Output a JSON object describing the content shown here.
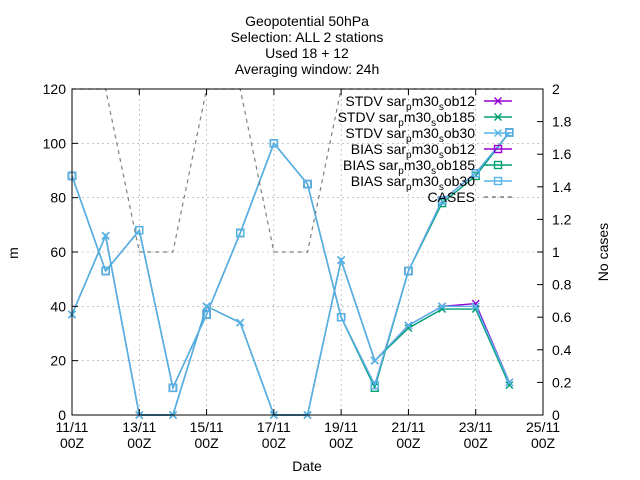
{
  "chart_data": {
    "type": "line",
    "title_lines": [
      "Geopotential 50hPa",
      "Selection: ALL      2 stations",
      "Used 18 + 12",
      "Averaging window: 24h"
    ],
    "xlabel": "Date",
    "ylabel": "m",
    "y2label": "No cases",
    "ylim": [
      0,
      120
    ],
    "y2lim": [
      0,
      2
    ],
    "yticks": [
      "0",
      "20",
      "40",
      "60",
      "80",
      "100",
      "120"
    ],
    "y2ticks": [
      "0",
      "0.2",
      "0.4",
      "0.6",
      "0.8",
      "1",
      "1.2",
      "1.4",
      "1.6",
      "1.8",
      "2"
    ],
    "xlim": [
      0,
      14
    ],
    "xticks": [
      {
        "pos": 0,
        "line1": "11/11",
        "line2": "00Z"
      },
      {
        "pos": 2,
        "line1": "13/11",
        "line2": "00Z"
      },
      {
        "pos": 4,
        "line1": "15/11",
        "line2": "00Z"
      },
      {
        "pos": 6,
        "line1": "17/11",
        "line2": "00Z"
      },
      {
        "pos": 8,
        "line1": "19/11",
        "line2": "00Z"
      },
      {
        "pos": 10,
        "line1": "21/11",
        "line2": "00Z"
      },
      {
        "pos": 12,
        "line1": "23/11",
        "line2": "00Z"
      },
      {
        "pos": 14,
        "line1": "25/11",
        "line2": "00Z"
      }
    ],
    "grid": true,
    "legend_position": "top-right",
    "series": [
      {
        "name": "STDV sar_pm30_sob12",
        "color": "#9400d3",
        "marker": "x",
        "points": [
          [
            0,
            37
          ],
          [
            1,
            66
          ],
          [
            2,
            0
          ],
          [
            3,
            0
          ],
          [
            4,
            40
          ],
          [
            5,
            34
          ],
          [
            6,
            0
          ],
          [
            7,
            0
          ],
          [
            8,
            57
          ],
          [
            9,
            20
          ],
          [
            10,
            33
          ],
          [
            11,
            40
          ],
          [
            12,
            41
          ],
          [
            13,
            12
          ]
        ]
      },
      {
        "name": "STDV sar_pm30_sob185",
        "color": "#009e73",
        "marker": "x",
        "points": [
          [
            0,
            37
          ],
          [
            1,
            66
          ],
          [
            2,
            0
          ],
          [
            3,
            0
          ],
          [
            4,
            40
          ],
          [
            5,
            34
          ],
          [
            6,
            0
          ],
          [
            7,
            0
          ],
          [
            8,
            57
          ],
          [
            9,
            20
          ],
          [
            10,
            32
          ],
          [
            11,
            39
          ],
          [
            12,
            39
          ],
          [
            13,
            11
          ]
        ]
      },
      {
        "name": "STDV sar_pm30_sob30",
        "color": "#56b4e9",
        "marker": "x",
        "points": [
          [
            0,
            37
          ],
          [
            1,
            66
          ],
          [
            2,
            0
          ],
          [
            3,
            0
          ],
          [
            4,
            40
          ],
          [
            5,
            34
          ],
          [
            6,
            0
          ],
          [
            7,
            0
          ],
          [
            8,
            57
          ],
          [
            9,
            20
          ],
          [
            10,
            33
          ],
          [
            11,
            40
          ],
          [
            12,
            40
          ],
          [
            13,
            12
          ]
        ]
      },
      {
        "name": "BIAS sar_pm30_sob12",
        "color": "#9400d3",
        "marker": "square",
        "points": [
          [
            0,
            88
          ],
          [
            1,
            53
          ],
          [
            2,
            68
          ],
          [
            3,
            10
          ],
          [
            4,
            37
          ],
          [
            5,
            67
          ],
          [
            6,
            100
          ],
          [
            7,
            85
          ],
          [
            8,
            36
          ],
          [
            9,
            11
          ],
          [
            10,
            53
          ],
          [
            11,
            79
          ],
          [
            12,
            89
          ],
          [
            13,
            104
          ]
        ]
      },
      {
        "name": "BIAS sar_pm30_sob185",
        "color": "#009e73",
        "marker": "square",
        "points": [
          [
            0,
            88
          ],
          [
            1,
            53
          ],
          [
            2,
            68
          ],
          [
            3,
            10
          ],
          [
            4,
            37
          ],
          [
            5,
            67
          ],
          [
            6,
            100
          ],
          [
            7,
            85
          ],
          [
            8,
            36
          ],
          [
            9,
            10
          ],
          [
            10,
            53
          ],
          [
            11,
            78
          ],
          [
            12,
            88
          ],
          [
            13,
            104
          ]
        ]
      },
      {
        "name": "BIAS sar_pm30_sob30",
        "color": "#56b4e9",
        "marker": "square",
        "points": [
          [
            0,
            88
          ],
          [
            1,
            53
          ],
          [
            2,
            68
          ],
          [
            3,
            10
          ],
          [
            4,
            37
          ],
          [
            5,
            67
          ],
          [
            6,
            100
          ],
          [
            7,
            85
          ],
          [
            8,
            36
          ],
          [
            9,
            11
          ],
          [
            10,
            53
          ],
          [
            11,
            79
          ],
          [
            12,
            89
          ],
          [
            13,
            104
          ]
        ]
      },
      {
        "name": "CASES",
        "color": "#808080",
        "marker": "none",
        "dashed": true,
        "axis": "y2",
        "points": [
          [
            0,
            2
          ],
          [
            1,
            2
          ],
          [
            2,
            1
          ],
          [
            3,
            1
          ],
          [
            4,
            2
          ],
          [
            5,
            2
          ],
          [
            6,
            1
          ],
          [
            7,
            1
          ],
          [
            8,
            2
          ],
          [
            9,
            2
          ],
          [
            10,
            2
          ],
          [
            11,
            2
          ],
          [
            12,
            2
          ],
          [
            13,
            2
          ]
        ]
      }
    ]
  }
}
